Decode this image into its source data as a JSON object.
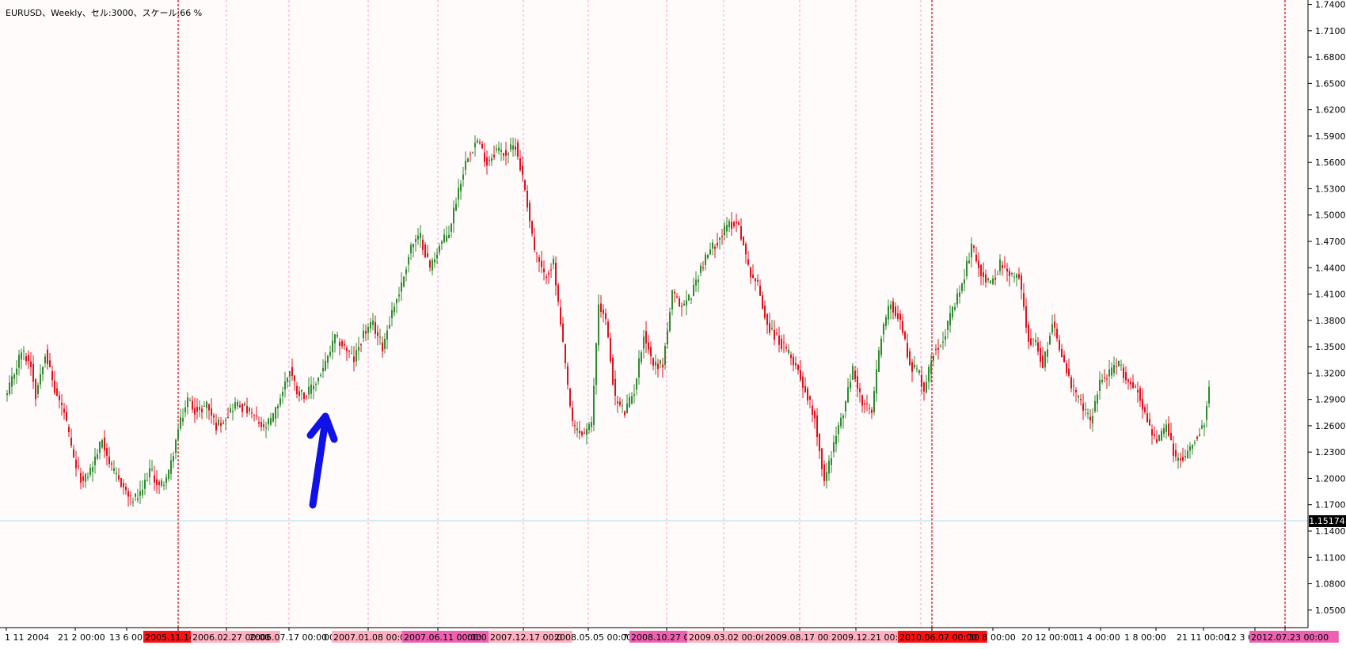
{
  "chart_title": "EURUSD、Weekly、セル:3000、スケール:66 %",
  "current_price": "1.15174",
  "y_tick_labels": [
    "1.74000",
    "1.71000",
    "1.68000",
    "1.65000",
    "1.62000",
    "1.59000",
    "1.56000",
    "1.53000",
    "1.50000",
    "1.47000",
    "1.44000",
    "1.41000",
    "1.38000",
    "1.35000",
    "1.32000",
    "1.29000",
    "1.26000",
    "1.23000",
    "1.20000",
    "1.17000",
    "1.14000",
    "1.11000",
    "1.08000",
    "1.05000"
  ],
  "x_tick_labels": [
    "1 11 2004",
    "21 2 00:00",
    "13 6 00:00",
    "2005.11.14",
    "2006.02.27 00:00",
    "2006.07.17 00:00",
    "00:",
    "2007.01.08 00:00",
    "2007.06.11 00:00",
    "00:0",
    "2007.12.17 00:0",
    "2008.05.05 00:00",
    "7 0",
    "2008.10.27 00:",
    "2009.03.02 00:00",
    "2009.08.17 00:00",
    "2009.12.21 00:00",
    "2010.06.07 00:00",
    "30 8 00:00",
    "20 12 00:00",
    "11 4 00:00",
    "1 8 00:00",
    "21 11 00:00",
    "12 3 00:",
    "2012.07.23 00:00"
  ],
  "colors": {
    "background": "#fffbfb",
    "up_candle": "#2e8b2e",
    "down_candle": "#e0101c",
    "grid_major": "#e01020",
    "grid_minor": "#ff9fc8",
    "price_line": "#a8e0ee",
    "arrow": "#1010e8",
    "label_red": "#ff1010",
    "label_pink": "#ffb0c0",
    "label_magenta": "#f060b0",
    "price_label_bg": "#000000"
  },
  "chart_data": {
    "type": "candlestick",
    "title": "EURUSD、Weekly、セル:3000、スケール:66 %",
    "ylim": [
      1.03,
      1.745
    ],
    "grid": "vertical dashed at session markers",
    "keypoints": [
      [
        0,
        1.295
      ],
      [
        6,
        1.345
      ],
      [
        10,
        1.33
      ],
      [
        12,
        1.295
      ],
      [
        16,
        1.345
      ],
      [
        20,
        1.3
      ],
      [
        24,
        1.275
      ],
      [
        28,
        1.22
      ],
      [
        32,
        1.195
      ],
      [
        36,
        1.215
      ],
      [
        40,
        1.245
      ],
      [
        44,
        1.21
      ],
      [
        48,
        1.195
      ],
      [
        52,
        1.175
      ],
      [
        56,
        1.18
      ],
      [
        60,
        1.21
      ],
      [
        64,
        1.19
      ],
      [
        68,
        1.205
      ],
      [
        72,
        1.255
      ],
      [
        76,
        1.29
      ],
      [
        80,
        1.275
      ],
      [
        84,
        1.285
      ],
      [
        88,
        1.26
      ],
      [
        92,
        1.27
      ],
      [
        96,
        1.285
      ],
      [
        100,
        1.28
      ],
      [
        104,
        1.27
      ],
      [
        108,
        1.255
      ],
      [
        112,
        1.27
      ],
      [
        116,
        1.3
      ],
      [
        119,
        1.325
      ],
      [
        122,
        1.3
      ],
      [
        126,
        1.295
      ],
      [
        130,
        1.31
      ],
      [
        134,
        1.33
      ],
      [
        138,
        1.36
      ],
      [
        142,
        1.35
      ],
      [
        146,
        1.335
      ],
      [
        150,
        1.365
      ],
      [
        154,
        1.375
      ],
      [
        158,
        1.35
      ],
      [
        162,
        1.39
      ],
      [
        166,
        1.42
      ],
      [
        170,
        1.465
      ],
      [
        174,
        1.475
      ],
      [
        178,
        1.44
      ],
      [
        182,
        1.465
      ],
      [
        186,
        1.48
      ],
      [
        190,
        1.53
      ],
      [
        194,
        1.57
      ],
      [
        198,
        1.585
      ],
      [
        202,
        1.56
      ],
      [
        206,
        1.575
      ],
      [
        210,
        1.57
      ],
      [
        214,
        1.58
      ],
      [
        218,
        1.53
      ],
      [
        222,
        1.46
      ],
      [
        226,
        1.43
      ],
      [
        230,
        1.445
      ],
      [
        234,
        1.35
      ],
      [
        238,
        1.26
      ],
      [
        242,
        1.25
      ],
      [
        246,
        1.26
      ],
      [
        249,
        1.4
      ],
      [
        252,
        1.38
      ],
      [
        256,
        1.29
      ],
      [
        260,
        1.275
      ],
      [
        264,
        1.3
      ],
      [
        268,
        1.365
      ],
      [
        272,
        1.33
      ],
      [
        276,
        1.33
      ],
      [
        280,
        1.41
      ],
      [
        284,
        1.395
      ],
      [
        288,
        1.41
      ],
      [
        292,
        1.44
      ],
      [
        296,
        1.46
      ],
      [
        300,
        1.475
      ],
      [
        304,
        1.49
      ],
      [
        308,
        1.49
      ],
      [
        312,
        1.44
      ],
      [
        316,
        1.42
      ],
      [
        320,
        1.375
      ],
      [
        324,
        1.36
      ],
      [
        328,
        1.345
      ],
      [
        332,
        1.33
      ],
      [
        336,
        1.3
      ],
      [
        340,
        1.27
      ],
      [
        344,
        1.195
      ],
      [
        348,
        1.24
      ],
      [
        352,
        1.275
      ],
      [
        356,
        1.325
      ],
      [
        360,
        1.285
      ],
      [
        364,
        1.275
      ],
      [
        368,
        1.365
      ],
      [
        372,
        1.4
      ],
      [
        376,
        1.38
      ],
      [
        380,
        1.33
      ],
      [
        384,
        1.32
      ],
      [
        386,
        1.3
      ],
      [
        390,
        1.345
      ],
      [
        394,
        1.36
      ],
      [
        398,
        1.39
      ],
      [
        402,
        1.42
      ],
      [
        406,
        1.465
      ],
      [
        410,
        1.435
      ],
      [
        414,
        1.42
      ],
      [
        418,
        1.445
      ],
      [
        422,
        1.43
      ],
      [
        426,
        1.43
      ],
      [
        430,
        1.36
      ],
      [
        434,
        1.35
      ],
      [
        436,
        1.325
      ],
      [
        440,
        1.38
      ],
      [
        444,
        1.34
      ],
      [
        448,
        1.305
      ],
      [
        452,
        1.285
      ],
      [
        456,
        1.265
      ],
      [
        460,
        1.31
      ],
      [
        464,
        1.32
      ],
      [
        468,
        1.33
      ],
      [
        472,
        1.31
      ],
      [
        476,
        1.3
      ],
      [
        480,
        1.265
      ],
      [
        484,
        1.24
      ],
      [
        488,
        1.26
      ],
      [
        492,
        1.22
      ],
      [
        496,
        1.225
      ],
      [
        500,
        1.245
      ],
      [
        504,
        1.265
      ],
      [
        506,
        1.31
      ]
    ]
  }
}
